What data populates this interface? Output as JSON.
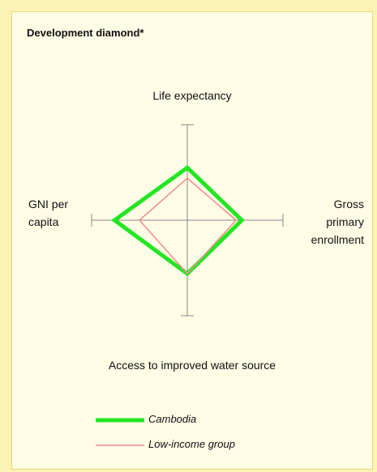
{
  "chart_data": {
    "type": "radar",
    "title": "Development diamond*",
    "axes": [
      "Life expectancy",
      "Gross primary enrollment",
      "Access to improved water source",
      "GNI per capita"
    ],
    "rlim": [
      0,
      100
    ],
    "series": [
      {
        "name": "Cambodia",
        "color": "#22e622",
        "values": [
          55,
          57,
          56,
          76
        ]
      },
      {
        "name": "Low-income group",
        "color": "#f08a8a",
        "values": [
          44,
          51,
          56,
          50
        ]
      }
    ]
  }
}
